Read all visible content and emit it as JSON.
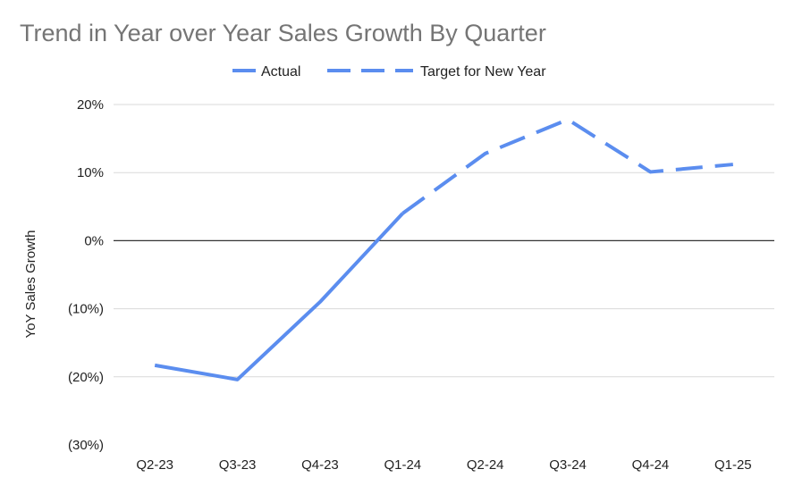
{
  "chart_data": {
    "type": "line",
    "title": "Trend in Year over Year Sales Growth By Quarter",
    "ylabel": "YoY Sales Growth",
    "xlabel": "",
    "categories": [
      "Q2-23",
      "Q3-23",
      "Q4-23",
      "Q1-24",
      "Q2-24",
      "Q3-24",
      "Q4-24",
      "Q1-25"
    ],
    "ylim": [
      -30,
      20
    ],
    "yticks": [
      20,
      10,
      0,
      -10,
      -20,
      -30
    ],
    "ytick_labels": [
      "20%",
      "10%",
      "0%",
      "(10%)",
      "(20%)",
      "(30%)"
    ],
    "grid": true,
    "legend_position": "top-center",
    "series": [
      {
        "name": "Actual",
        "style": "solid",
        "color": "#5b8def",
        "values": [
          -18.3,
          -20.4,
          -9,
          4,
          null,
          null,
          null,
          null
        ]
      },
      {
        "name": "Target for New Year",
        "style": "dashed",
        "color": "#5b8def",
        "values": [
          null,
          null,
          null,
          4,
          12.8,
          17.8,
          10.1,
          11.2
        ]
      }
    ]
  }
}
